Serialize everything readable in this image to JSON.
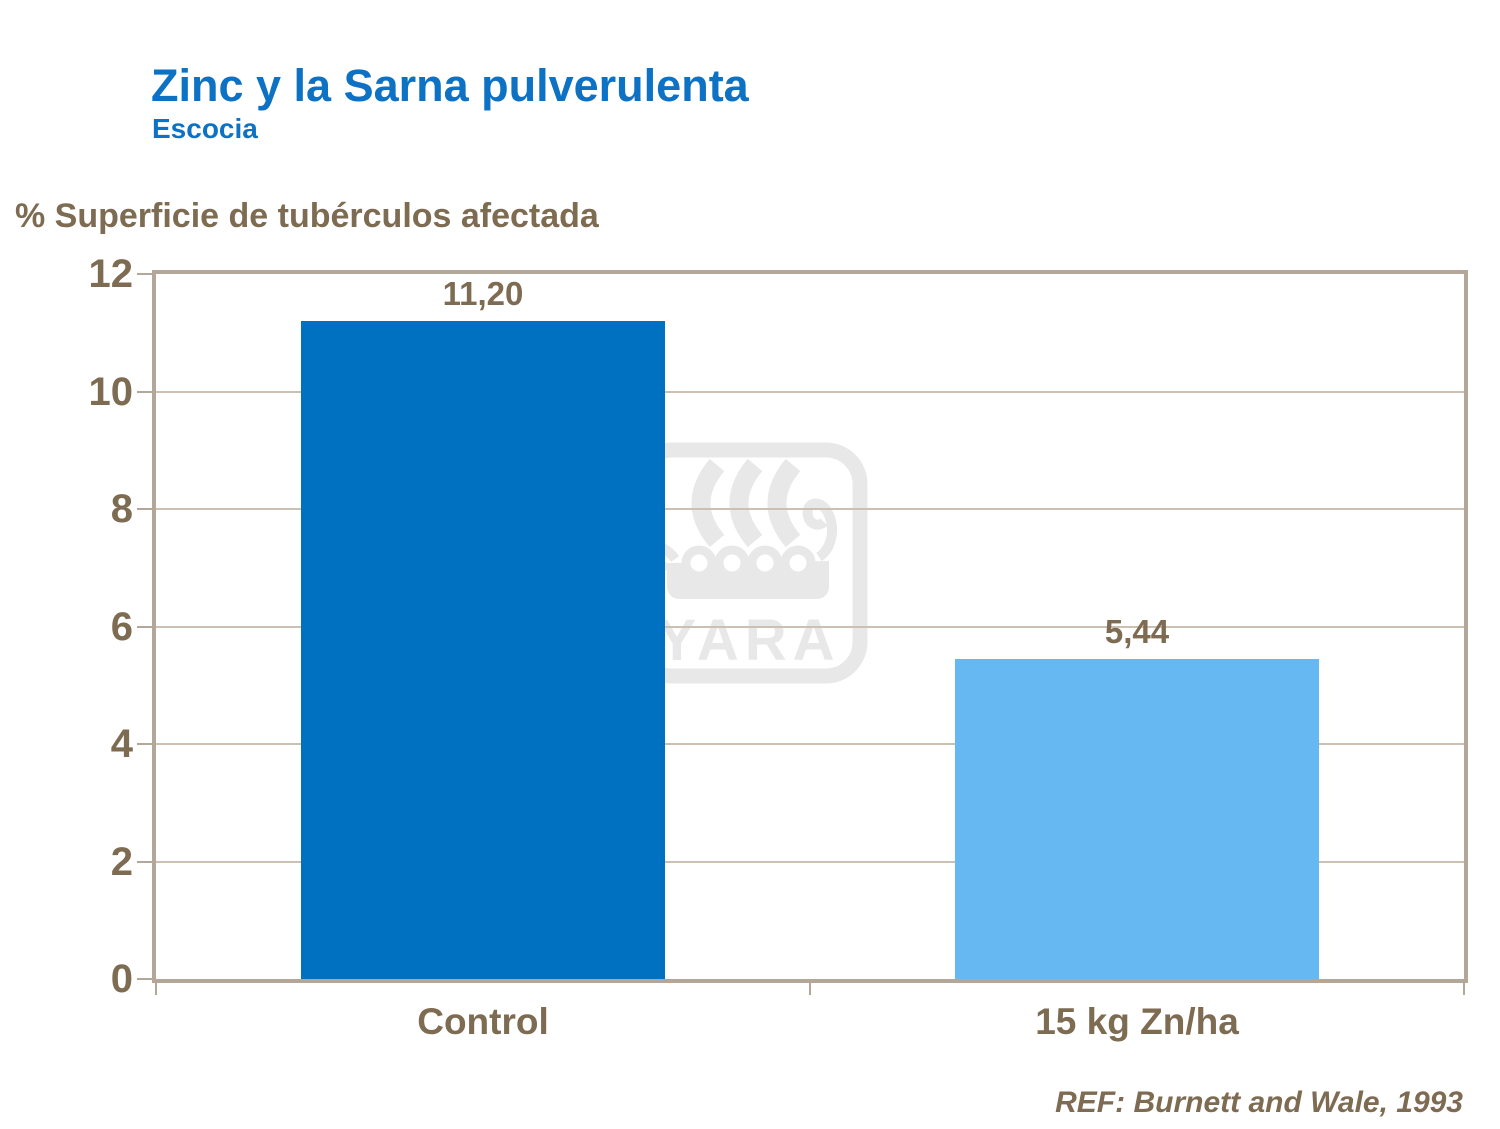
{
  "header": {
    "title": "Zinc y la Sarna pulverulenta",
    "subtitle": "Escocia"
  },
  "chart_data": {
    "type": "bar",
    "title": "Zinc y la Sarna pulverulenta",
    "subtitle": "Escocia",
    "axis_title": "% Superficie de tubérculos afectada",
    "categories": [
      "Control",
      "15 kg Zn/ha"
    ],
    "values": [
      11.2,
      5.44
    ],
    "value_labels": [
      "11,20",
      "5,44"
    ],
    "bar_colors": [
      "#0070C0",
      "#66B8F3"
    ],
    "ylim": [
      0,
      12
    ],
    "yticks": [
      0,
      2,
      4,
      6,
      8,
      10,
      12
    ],
    "grid": true,
    "legend": "none"
  },
  "footer": {
    "reference": "REF: Burnett and Wale, 1993"
  },
  "watermark": {
    "name": "yara-viking-ship-logo",
    "text": "YARA",
    "color": "#E8E8E8"
  },
  "colors": {
    "title": "#0D72C4",
    "text": "#7D6B52",
    "grid": "#CCC1B1",
    "border": "#B2A799"
  }
}
